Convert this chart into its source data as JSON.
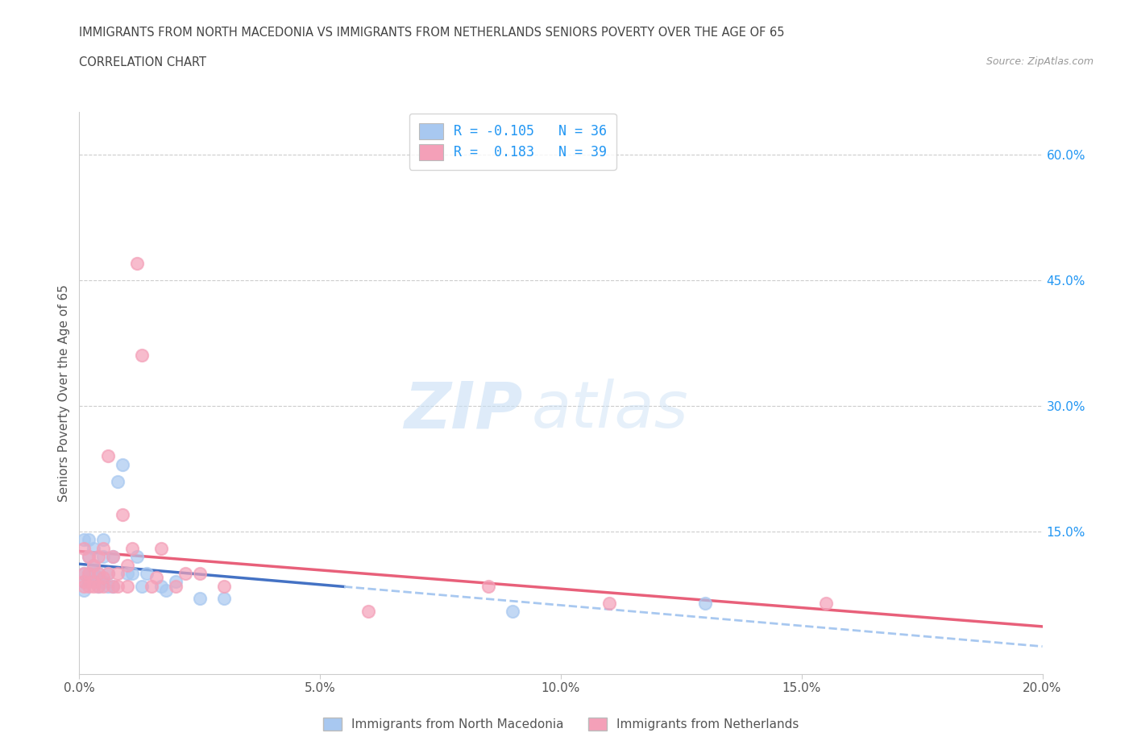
{
  "title_line1": "IMMIGRANTS FROM NORTH MACEDONIA VS IMMIGRANTS FROM NETHERLANDS SENIORS POVERTY OVER THE AGE OF 65",
  "title_line2": "CORRELATION CHART",
  "source_text": "Source: ZipAtlas.com",
  "ylabel": "Seniors Poverty Over the Age of 65",
  "xmin": 0.0,
  "xmax": 0.2,
  "ymin": -0.02,
  "ymax": 0.65,
  "xticks": [
    0.0,
    0.05,
    0.1,
    0.15,
    0.2
  ],
  "xtick_labels": [
    "0.0%",
    "5.0%",
    "10.0%",
    "15.0%",
    "20.0%"
  ],
  "ytick_labels_right": [
    "15.0%",
    "30.0%",
    "45.0%",
    "60.0%"
  ],
  "ytick_vals_right": [
    0.15,
    0.3,
    0.45,
    0.6
  ],
  "color_blue": "#A8C8F0",
  "color_pink": "#F4A0B8",
  "trendline_blue_solid": "#4472C4",
  "trendline_blue_dash": "#A8C8F0",
  "trendline_pink": "#E8607A",
  "R_blue": -0.105,
  "N_blue": 36,
  "R_pink": 0.183,
  "N_pink": 39,
  "watermark_zip": "ZIP",
  "watermark_atlas": "atlas",
  "legend_label_blue": "Immigrants from North Macedonia",
  "legend_label_pink": "Immigrants from Netherlands",
  "blue_x": [
    0.001,
    0.001,
    0.001,
    0.001,
    0.002,
    0.002,
    0.002,
    0.002,
    0.003,
    0.003,
    0.003,
    0.003,
    0.004,
    0.004,
    0.004,
    0.005,
    0.005,
    0.005,
    0.006,
    0.006,
    0.007,
    0.007,
    0.008,
    0.009,
    0.01,
    0.011,
    0.012,
    0.013,
    0.014,
    0.017,
    0.018,
    0.02,
    0.025,
    0.03,
    0.09,
    0.13
  ],
  "blue_y": [
    0.1,
    0.09,
    0.08,
    0.14,
    0.1,
    0.09,
    0.12,
    0.14,
    0.09,
    0.11,
    0.1,
    0.13,
    0.085,
    0.1,
    0.095,
    0.09,
    0.12,
    0.14,
    0.085,
    0.1,
    0.085,
    0.12,
    0.21,
    0.23,
    0.1,
    0.1,
    0.12,
    0.085,
    0.1,
    0.085,
    0.08,
    0.09,
    0.07,
    0.07,
    0.055,
    0.065
  ],
  "pink_x": [
    0.001,
    0.001,
    0.001,
    0.001,
    0.002,
    0.002,
    0.002,
    0.003,
    0.003,
    0.003,
    0.004,
    0.004,
    0.004,
    0.005,
    0.005,
    0.005,
    0.006,
    0.006,
    0.007,
    0.007,
    0.008,
    0.008,
    0.009,
    0.01,
    0.01,
    0.011,
    0.012,
    0.013,
    0.015,
    0.016,
    0.017,
    0.02,
    0.022,
    0.025,
    0.03,
    0.06,
    0.085,
    0.11,
    0.155
  ],
  "pink_y": [
    0.085,
    0.09,
    0.1,
    0.13,
    0.085,
    0.1,
    0.12,
    0.085,
    0.11,
    0.09,
    0.085,
    0.1,
    0.12,
    0.085,
    0.095,
    0.13,
    0.1,
    0.24,
    0.085,
    0.12,
    0.085,
    0.1,
    0.17,
    0.085,
    0.11,
    0.13,
    0.47,
    0.36,
    0.085,
    0.095,
    0.13,
    0.085,
    0.1,
    0.1,
    0.085,
    0.055,
    0.085,
    0.065,
    0.065
  ],
  "hline_vals": [
    0.15,
    0.3,
    0.45,
    0.6
  ],
  "background_color": "#ffffff",
  "trendline_blue_solid_end": 0.055,
  "trendline_blue_dash_start": 0.055
}
